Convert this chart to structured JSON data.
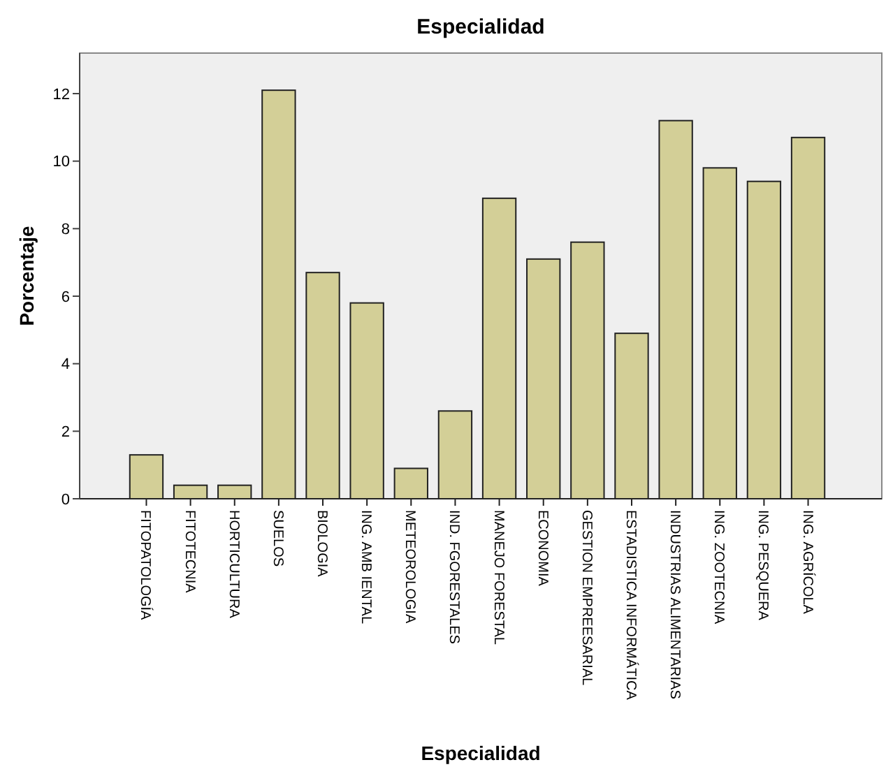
{
  "chart_data": {
    "type": "bar",
    "title": "Especialidad",
    "xlabel": "Especialidad",
    "ylabel": "Porcentaje",
    "categories": [
      "FITOPATOLOGÍA",
      "FITOTECNIA",
      "HORTICULTURA",
      "SUELOS",
      "BIOLOGIA",
      "ING. AMB IENTAL",
      "METEOROLOGIA",
      "IND. FGORESTALES",
      "MANEJO FORESTAL",
      "ECONOMIA",
      "GESTION EMPREESARIAL",
      "ESTADISTICA INFORMÁTICA",
      "INDUSTRIAS ALIMENTARIAS",
      "ING. ZOOTECNIA",
      "ING. PESQUERA",
      "ING. AGRÍCOLA"
    ],
    "values": [
      1.3,
      0.4,
      0.4,
      12.1,
      6.7,
      5.8,
      0.9,
      2.6,
      8.9,
      7.1,
      7.6,
      4.9,
      11.2,
      9.8,
      9.4,
      10.7
    ],
    "color": "#d3cf97",
    "ylim": [
      0,
      13.2
    ],
    "yticks": [
      0,
      2,
      4,
      6,
      8,
      10,
      12
    ],
    "grid": false
  }
}
